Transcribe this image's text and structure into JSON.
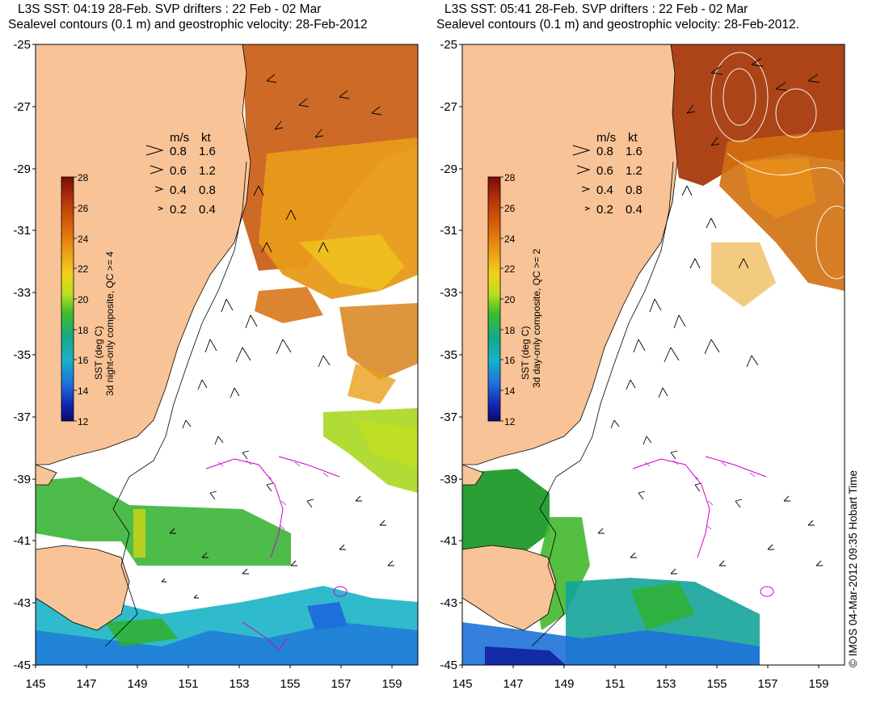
{
  "panels": [
    {
      "id": "night",
      "title_line1": "L3S SST: 04:19 28-Feb. SVP drifters : 22 Feb - 02 Mar",
      "title_line2": "Sealevel contours (0.1 m) and geostrophic velocity: 28-Feb-2012",
      "colorbar_title": "SST (deg C)",
      "colorbar_subtitle": "3d night-only composite, QC >= 4"
    },
    {
      "id": "day",
      "title_line1": "L3S SST: 05:41 28-Feb. SVP drifters : 22 Feb - 02 Mar",
      "title_line2": "Sealevel contours (0.1 m) and geostrophic velocity: 28-Feb-2012.",
      "colorbar_title": "SST (deg C)",
      "colorbar_subtitle": "3d day-only composite, QC >= 2"
    }
  ],
  "lat_ticks": [
    "-25",
    "-27",
    "-29",
    "-31",
    "-33",
    "-35",
    "-37",
    "-39",
    "-41",
    "-43",
    "-45"
  ],
  "lon_ticks": [
    "145",
    "147",
    "149",
    "151",
    "153",
    "155",
    "157",
    "159"
  ],
  "colorbar_ticks": [
    "28",
    "26",
    "24",
    "22",
    "20",
    "18",
    "16",
    "14",
    "12"
  ],
  "legend": {
    "header_ms": "m/s",
    "header_kt": "kt",
    "rows": [
      {
        "ms": "0.8",
        "kt": "1.6",
        "level": 0.8
      },
      {
        "ms": "0.6",
        "kt": "1.2",
        "level": 0.6
      },
      {
        "ms": "0.4",
        "kt": "0.8",
        "level": 0.4
      },
      {
        "ms": "0.2",
        "kt": "0.4",
        "level": 0.2
      }
    ]
  },
  "credit": "© IMOS 04-Mar-2012 09:35 Hobart Time",
  "colors": {
    "land": "#f8c396",
    "ocean": "#ffffff",
    "drifter": "#cc00cc",
    "arrow": "#000000",
    "coast_line": "#000000",
    "sst_scale": [
      "#7a0a0a",
      "#b4320a",
      "#d8620a",
      "#eb9a12",
      "#f2d21a",
      "#b8e01e",
      "#3cbd2a",
      "#16a888",
      "#15b3c8",
      "#1e6fdc",
      "#1428b4",
      "#0a0a70"
    ]
  }
}
